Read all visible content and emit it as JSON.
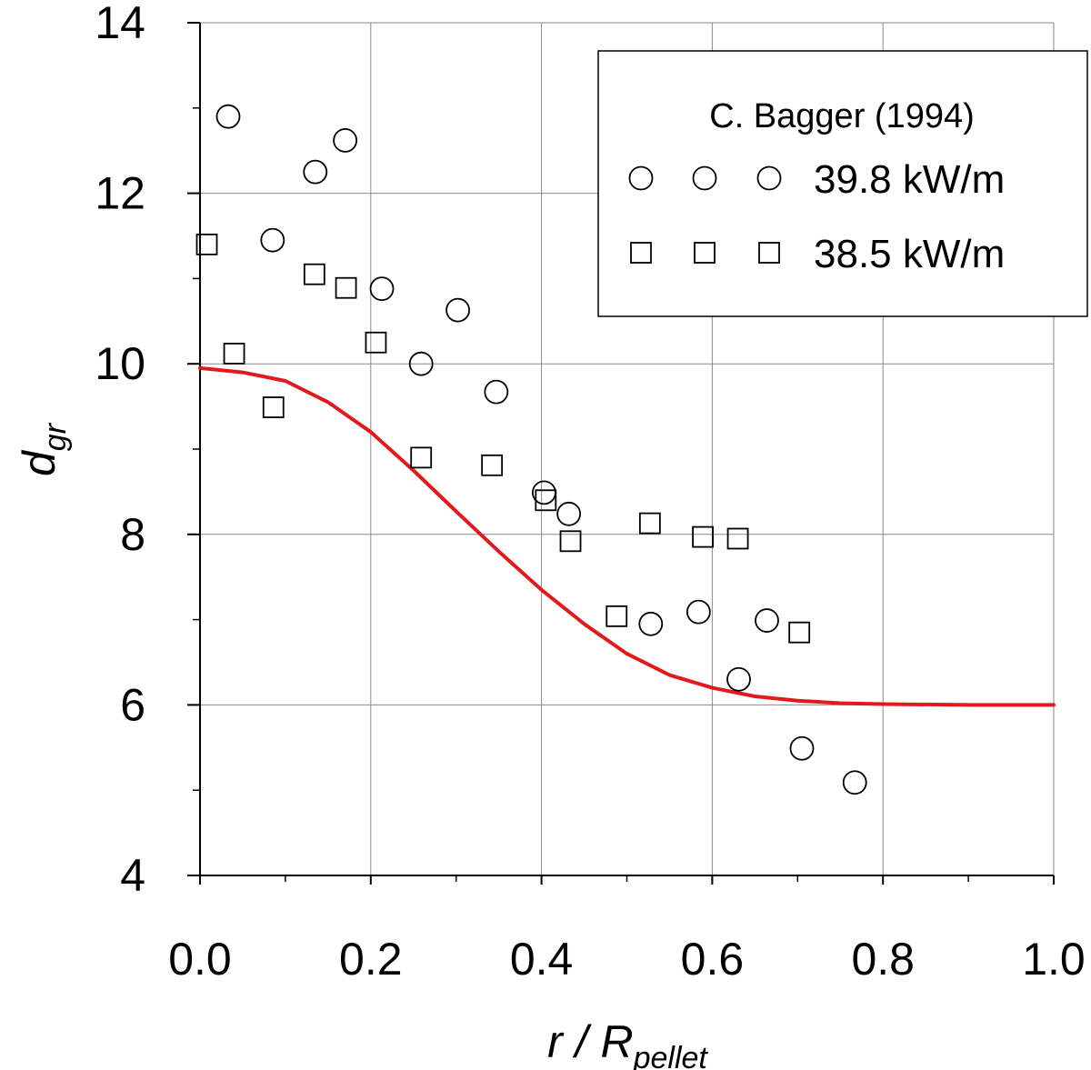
{
  "chart_data": {
    "type": "scatter",
    "title": "",
    "xlabel": {
      "main": "r / R",
      "sub": "pellet"
    },
    "ylabel": {
      "main": "d",
      "sub": "gr"
    },
    "xlim": [
      0.0,
      1.0
    ],
    "ylim": [
      4,
      14
    ],
    "x_ticks": [
      "0.0",
      "0.2",
      "0.4",
      "0.6",
      "0.8",
      "1.0"
    ],
    "y_ticks": [
      "4",
      "6",
      "8",
      "10",
      "12",
      "14"
    ],
    "grid": true,
    "legend": {
      "position": "top-right",
      "title": "C. Bagger (1994)"
    },
    "series": [
      {
        "name": "39.8 kW/m",
        "marker": "circle",
        "points": [
          [
            0.033,
            12.9
          ],
          [
            0.085,
            11.45
          ],
          [
            0.135,
            12.25
          ],
          [
            0.17,
            12.62
          ],
          [
            0.213,
            10.88
          ],
          [
            0.259,
            10.0
          ],
          [
            0.302,
            10.63
          ],
          [
            0.347,
            9.67
          ],
          [
            0.403,
            8.49
          ],
          [
            0.432,
            8.24
          ],
          [
            0.528,
            6.95
          ],
          [
            0.584,
            7.09
          ],
          [
            0.631,
            6.3
          ],
          [
            0.664,
            6.99
          ],
          [
            0.705,
            5.49
          ],
          [
            0.767,
            5.09
          ]
        ]
      },
      {
        "name": "38.5 kW/m",
        "marker": "square",
        "points": [
          [
            0.008,
            11.4
          ],
          [
            0.04,
            10.12
          ],
          [
            0.086,
            9.49
          ],
          [
            0.134,
            11.05
          ],
          [
            0.171,
            10.89
          ],
          [
            0.206,
            10.25
          ],
          [
            0.259,
            8.9
          ],
          [
            0.342,
            8.81
          ],
          [
            0.405,
            8.4
          ],
          [
            0.434,
            7.92
          ],
          [
            0.488,
            7.04
          ],
          [
            0.527,
            8.13
          ],
          [
            0.589,
            7.97
          ],
          [
            0.63,
            7.95
          ],
          [
            0.702,
            6.85
          ]
        ]
      },
      {
        "name": "",
        "type": "line",
        "color": "#e31a1c",
        "points": [
          [
            0.0,
            9.95
          ],
          [
            0.05,
            9.9
          ],
          [
            0.1,
            9.8
          ],
          [
            0.15,
            9.55
          ],
          [
            0.2,
            9.2
          ],
          [
            0.25,
            8.75
          ],
          [
            0.3,
            8.27
          ],
          [
            0.35,
            7.8
          ],
          [
            0.4,
            7.35
          ],
          [
            0.45,
            6.95
          ],
          [
            0.5,
            6.6
          ],
          [
            0.55,
            6.35
          ],
          [
            0.6,
            6.2
          ],
          [
            0.65,
            6.1
          ],
          [
            0.7,
            6.05
          ],
          [
            0.75,
            6.02
          ],
          [
            0.8,
            6.01
          ],
          [
            0.9,
            6.0
          ],
          [
            1.0,
            6.0
          ]
        ]
      }
    ]
  }
}
